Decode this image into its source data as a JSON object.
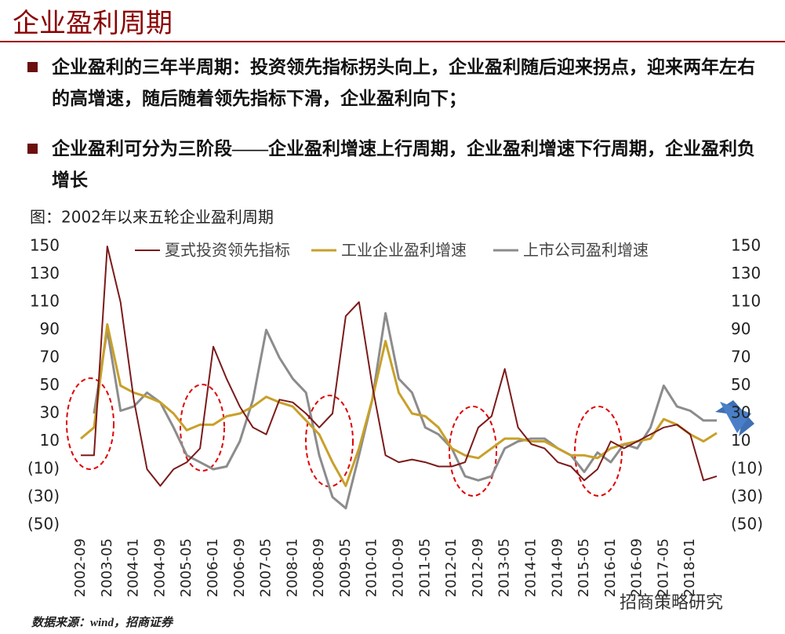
{
  "title": "企业盈利周期",
  "bullets": [
    "企业盈利的三年半周期：投资领先指标拐头向上，企业盈利随后迎来拐点，迎来两年左右的高增速，随后随着领先指标下滑，企业盈利向下；",
    "企业盈利可分为三阶段——企业盈利增速上行周期，企业盈利增速下行周期，企业盈利负增长"
  ],
  "source": "数据来源：wind，招商证券",
  "watermark": "招商策略研究",
  "chart_data": {
    "type": "line",
    "title": "图：2002年以来五轮企业盈利周期",
    "categories": [
      "2002-09",
      null,
      "2003-05",
      null,
      "2004-01",
      null,
      "2004-09",
      null,
      "2005-05",
      null,
      "2006-01",
      null,
      "2006-09",
      null,
      "2007-05",
      null,
      "2008-01",
      null,
      "2008-09",
      null,
      "2009-05",
      null,
      "2010-01",
      null,
      "2010-09",
      null,
      "2011-05",
      null,
      "2012-01",
      null,
      "2012-09",
      null,
      "2013-05",
      null,
      "2014-01",
      null,
      "2014-09",
      null,
      "2015-05",
      null,
      "2016-01",
      null,
      "2016-09",
      null,
      "2017-05",
      null,
      "2018-01",
      null,
      null
    ],
    "series": [
      {
        "name": "夏式投资领先指标",
        "color": "#7b1a1a",
        "values": [
          0,
          0,
          150,
          110,
          40,
          -10,
          -22,
          -10,
          -5,
          5,
          78,
          55,
          35,
          20,
          15,
          40,
          38,
          30,
          20,
          30,
          100,
          110,
          50,
          0,
          -5,
          -3,
          -5,
          -8,
          -8,
          -5,
          20,
          28,
          62,
          20,
          8,
          5,
          -5,
          -8,
          -18,
          -10,
          10,
          5,
          10,
          15,
          20,
          22,
          15,
          -18,
          -15
        ]
      },
      {
        "name": "工业企业盈利增速",
        "color": "#c8a02a",
        "values": [
          12,
          20,
          94,
          50,
          45,
          42,
          38,
          30,
          18,
          22,
          22,
          28,
          30,
          35,
          42,
          38,
          35,
          25,
          15,
          -5,
          -22,
          5,
          40,
          82,
          45,
          30,
          28,
          20,
          5,
          0,
          -2,
          5,
          12,
          12,
          10,
          10,
          5,
          0,
          0,
          -2,
          5,
          8,
          10,
          12,
          26,
          22,
          15,
          10,
          16
        ]
      },
      {
        "name": "上市公司盈利增速",
        "color": "#8c8c8c",
        "values": [
          null,
          30,
          90,
          32,
          35,
          45,
          38,
          20,
          0,
          -5,
          -10,
          -8,
          10,
          40,
          90,
          70,
          55,
          45,
          0,
          -30,
          -38,
          0,
          40,
          102,
          55,
          45,
          20,
          15,
          5,
          -15,
          -18,
          -15,
          5,
          10,
          12,
          12,
          5,
          0,
          -12,
          2,
          -5,
          8,
          5,
          20,
          50,
          35,
          32,
          25,
          25
        ]
      }
    ],
    "ylim": [
      -50,
      150
    ],
    "yticks": [
      150,
      130,
      110,
      90,
      70,
      50,
      30,
      10,
      {
        "value": -10,
        "label": "(10)"
      },
      {
        "value": -30,
        "label": "(30)"
      },
      {
        "value": -50,
        "label": "(50)"
      }
    ],
    "y2lim": [
      -50,
      150
    ],
    "y2ticks": [
      150,
      130,
      110,
      90,
      70,
      50,
      30,
      10,
      {
        "value": -10,
        "label": "(10)"
      },
      {
        "value": -30,
        "label": "(30)"
      },
      {
        "value": -50,
        "label": "(50)"
      }
    ],
    "negative_tick_color": "#c00000",
    "grid": false,
    "legend": "top"
  }
}
